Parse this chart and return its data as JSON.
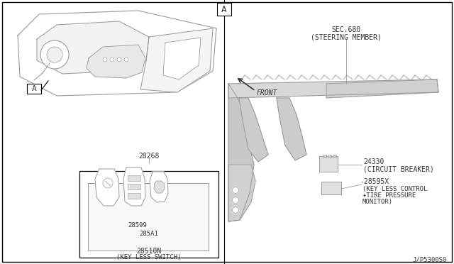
{
  "bg_color": "#ffffff",
  "border_color": "#000000",
  "line_color": "#999999",
  "dark_line": "#555555",
  "text_color": "#333333",
  "fig_width": 6.4,
  "fig_height": 3.72,
  "dpi": 100,
  "part_28268": "28268",
  "part_28599": "28599",
  "part_285A1": "285A1",
  "part_28510N": "28510N",
  "label_keyless_switch": "(KEY LESS SWITCH)",
  "part_SEC680": "SEC.680",
  "label_steering_member": "(STEERING MEMBER)",
  "part_24330": "24330",
  "label_circuit_breaker": "(CIRCUIT BREAKER)",
  "part_28595X": "28595X",
  "label_keyless_control_1": "(KEY LESS CONTROL",
  "label_keyless_control_2": "+TIRE PRESSURE",
  "label_keyless_control_3": "MONITOR)",
  "label_front": "FRONT",
  "label_A": "A",
  "diagram_code": "J/P5300S0"
}
